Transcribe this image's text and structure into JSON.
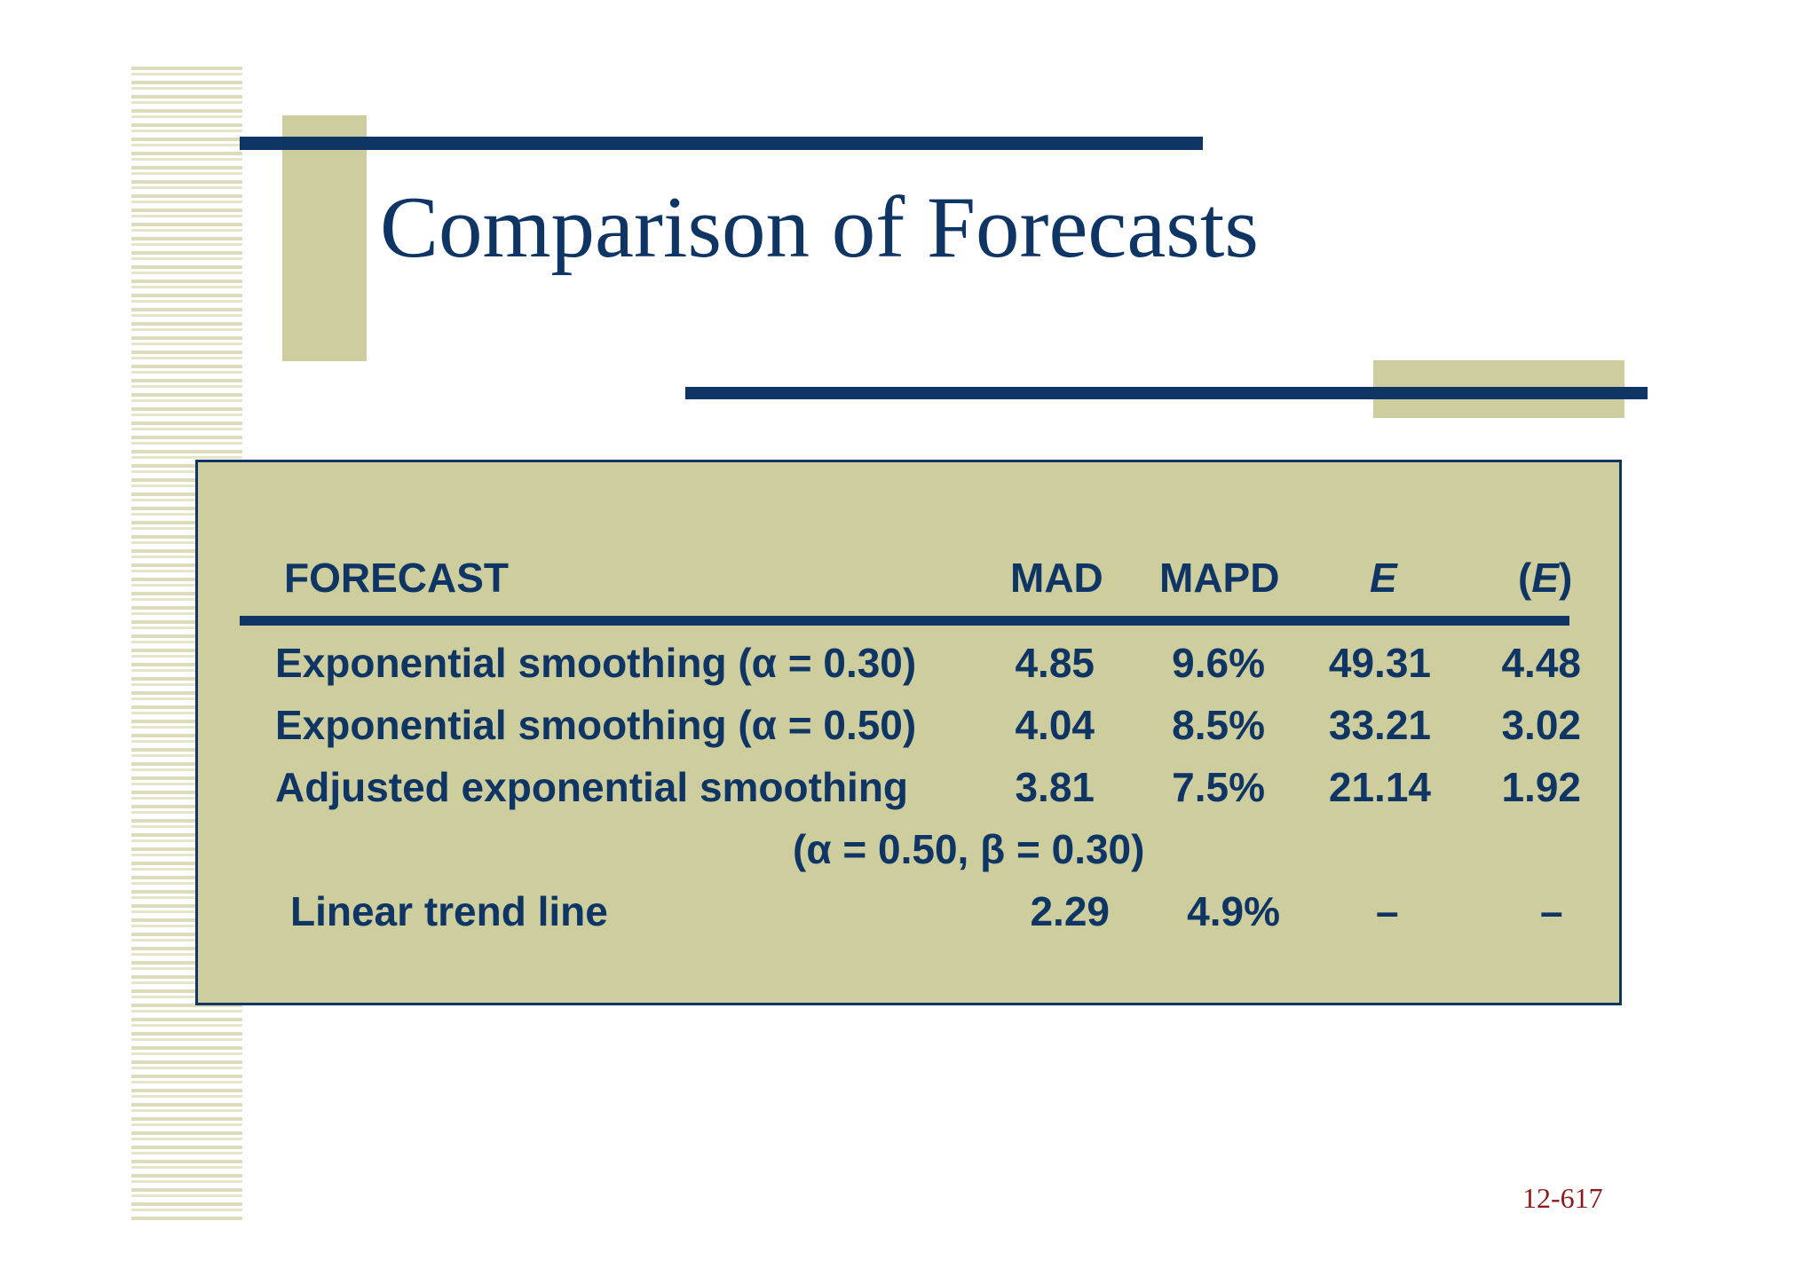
{
  "title": "Comparison of Forecasts",
  "table": {
    "headers": {
      "forecast": "FORECAST",
      "mad": "MAD",
      "mapd": "MAPD",
      "e": "E",
      "e_bar_open": "(",
      "e_bar_letter": "E",
      "e_bar_close": ")"
    },
    "rows": [
      {
        "forecast": "Exponential smoothing (α = 0.30)",
        "mad": "4.85",
        "mapd": "9.6%",
        "e": "49.31",
        "e_bar": "4.48"
      },
      {
        "forecast": "Exponential smoothing (α = 0.50)",
        "mad": "4.04",
        "mapd": "8.5%",
        "e": "33.21",
        "e_bar": "3.02"
      },
      {
        "forecast": "Adjusted exponential smoothing",
        "mad": "3.81",
        "mapd": "7.5%",
        "e": "21.14",
        "e_bar": "1.92"
      },
      {
        "forecast": "(α = 0.50, β = 0.30)"
      },
      {
        "forecast": "Linear trend line",
        "mad": "2.29",
        "mapd": "4.9%",
        "e": "–",
        "e_bar": "–"
      }
    ]
  },
  "footer": "12-617",
  "colors": {
    "navy": "#0e3563",
    "olive": "#cdcd9e",
    "footer_red": "#8b1a1a"
  }
}
